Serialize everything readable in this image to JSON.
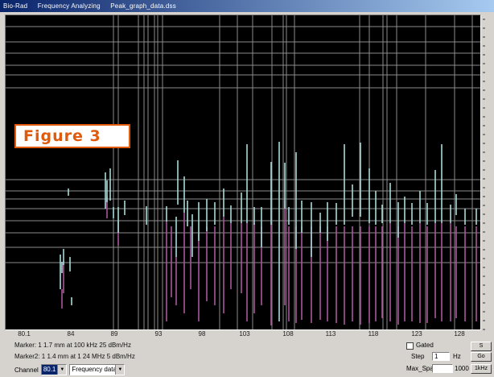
{
  "window": {
    "title_parts": [
      "Bio-Rad",
      "Frequency Analyzing",
      "Peak_graph_data.dss"
    ]
  },
  "figure_label": "Figure 3",
  "x_axis": {
    "tick_labels": [
      "80.1",
      "84",
      "89",
      "93",
      "98",
      "103",
      "108",
      "113",
      "118",
      "123",
      "128"
    ]
  },
  "status": {
    "line1": "Marker: 1 1.7 mm at 100 kHz 25 dBm/Hz",
    "line2": "Marker2: 1 1.4 mm at 1 24 MHz 5 dBm/Hz"
  },
  "bottom": {
    "label": "Channel",
    "select_value": "80.1",
    "mode_value": "Frequency data"
  },
  "right_controls": {
    "checkbox_label": "Gated",
    "step_label": "Step",
    "step_value": "1",
    "step_unit": "Hz",
    "button1": "S",
    "button2": "Go",
    "span_label": "Max_Span",
    "span_value": "",
    "span_unit": "1000",
    "button3": "1kHz"
  },
  "colors": {
    "plot_background": "#000000",
    "grid": "#8c8c8c",
    "trace_cyan": "#a9d9d8",
    "trace_magenta": "#a8589c",
    "figure_label": "#e05a0a"
  }
}
